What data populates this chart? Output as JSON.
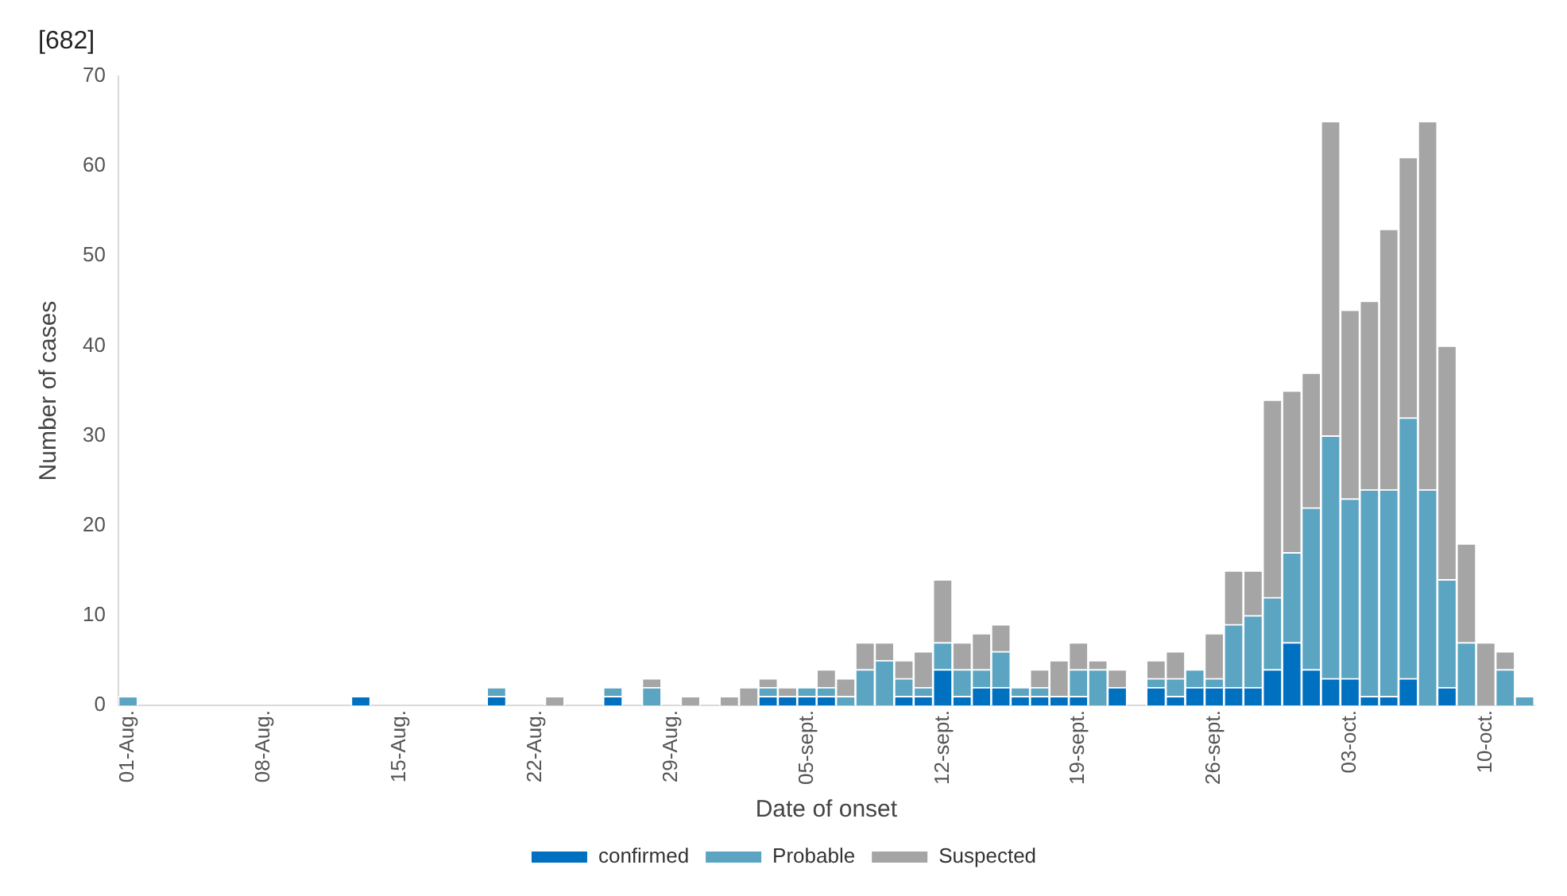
{
  "chart_data": {
    "type": "bar",
    "annotations": [
      "[682]"
    ],
    "xlabel": "Date of onset",
    "ylabel": "Number of cases",
    "stacked": true,
    "legend": "bottom",
    "grid": false,
    "ylim": [
      0,
      70
    ],
    "yticks": [
      0,
      10,
      20,
      30,
      40,
      50,
      60,
      70
    ],
    "categories": [
      "01-Aug.",
      null,
      null,
      null,
      null,
      null,
      null,
      "08-Aug.",
      null,
      null,
      null,
      null,
      null,
      null,
      "15-Aug.",
      null,
      null,
      null,
      null,
      null,
      null,
      "22-Aug.",
      null,
      null,
      null,
      null,
      null,
      null,
      "29-Aug.",
      null,
      null,
      null,
      null,
      null,
      null,
      "05-sept.",
      null,
      null,
      null,
      null,
      null,
      null,
      "12-sept.",
      null,
      null,
      null,
      null,
      null,
      null,
      "19-sept.",
      null,
      null,
      null,
      null,
      null,
      null,
      "26-sept.",
      null,
      null,
      null,
      null,
      null,
      null,
      "03-oct.",
      null,
      null,
      null,
      null,
      null,
      null,
      "10-oct.",
      null,
      null
    ],
    "series": [
      {
        "name": "confirmed",
        "color": "#0070c0",
        "values": [
          0,
          0,
          0,
          0,
          0,
          0,
          0,
          0,
          0,
          0,
          0,
          0,
          1,
          0,
          0,
          0,
          0,
          0,
          0,
          1,
          0,
          0,
          0,
          0,
          0,
          1,
          0,
          0,
          0,
          0,
          0,
          0,
          0,
          1,
          1,
          1,
          1,
          0,
          0,
          0,
          1,
          1,
          4,
          1,
          2,
          2,
          1,
          1,
          1,
          1,
          0,
          2,
          0,
          2,
          1,
          2,
          2,
          2,
          2,
          4,
          7,
          4,
          3,
          3,
          1,
          1,
          3,
          0,
          2,
          0,
          0,
          0,
          0
        ]
      },
      {
        "name": "Probable",
        "color": "#5ba5c2",
        "values": [
          1,
          0,
          0,
          0,
          0,
          0,
          0,
          0,
          0,
          0,
          0,
          0,
          0,
          0,
          0,
          0,
          0,
          0,
          0,
          1,
          0,
          0,
          0,
          0,
          0,
          1,
          0,
          2,
          0,
          0,
          0,
          0,
          0,
          1,
          0,
          1,
          1,
          1,
          4,
          5,
          2,
          1,
          3,
          3,
          2,
          4,
          1,
          1,
          0,
          3,
          4,
          0,
          0,
          1,
          2,
          2,
          1,
          7,
          8,
          8,
          10,
          18,
          27,
          20,
          23,
          23,
          29,
          24,
          12,
          7,
          0,
          4,
          1
        ]
      },
      {
        "name": "Suspected",
        "color": "#a5a5a5",
        "values": [
          0,
          0,
          0,
          0,
          0,
          0,
          0,
          0,
          0,
          0,
          0,
          0,
          0,
          0,
          0,
          0,
          0,
          0,
          0,
          0,
          0,
          0,
          1,
          0,
          0,
          0,
          0,
          1,
          0,
          1,
          0,
          1,
          2,
          1,
          1,
          0,
          2,
          2,
          3,
          2,
          2,
          4,
          7,
          3,
          4,
          3,
          0,
          2,
          4,
          3,
          1,
          2,
          0,
          2,
          3,
          0,
          5,
          6,
          5,
          22,
          18,
          15,
          35,
          21,
          21,
          29,
          29,
          41,
          26,
          11,
          7,
          2,
          0
        ]
      }
    ]
  }
}
